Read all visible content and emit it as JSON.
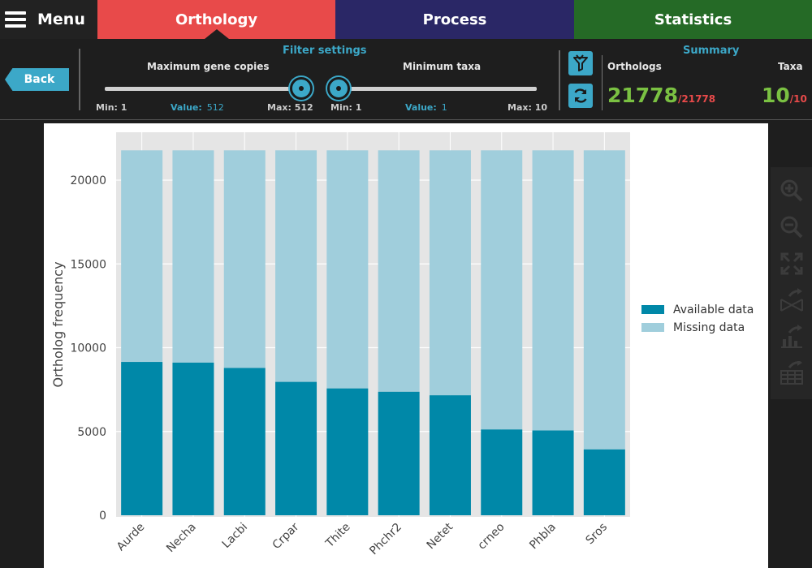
{
  "topbar": {
    "menu_label": "Menu",
    "tabs": [
      {
        "label": "Orthology",
        "color": "#e84a4a",
        "active": true
      },
      {
        "label": "Process",
        "color": "#2a2766"
      },
      {
        "label": "Statistics",
        "color": "#256a26"
      }
    ]
  },
  "filters": {
    "back_label": "Back",
    "title": "Filter settings",
    "max_gene_copies": {
      "label": "Maximum gene copies",
      "min_label": "Min: 1",
      "value_label": "Value:",
      "value": "512",
      "max_label": "Max: 512",
      "fraction": 1.0
    },
    "min_taxa": {
      "label": "Minimum taxa",
      "min_label": "Min: 1",
      "value_label": "Value:",
      "value": "1",
      "max_label": "Max: 10",
      "fraction": 0.0
    }
  },
  "summary": {
    "title": "Summary",
    "orthologs_label": "Orthologs",
    "orthologs_value": "21778",
    "orthologs_total": "/21778",
    "taxa_label": "Taxa",
    "taxa_value": "10",
    "taxa_total": "/10"
  },
  "colors": {
    "available": "#0088a8",
    "missing": "#a0cedc",
    "accent": "#3ca8c8",
    "green": "#7ac142",
    "red": "#e84a4a"
  },
  "chart_data": {
    "type": "bar",
    "stacked": true,
    "title": "",
    "xlabel": "",
    "ylabel": "Ortholog frequency",
    "ylim": [
      0,
      22000
    ],
    "yticks": [
      0,
      5000,
      10000,
      15000,
      20000
    ],
    "categories": [
      "Aurde",
      "Necha",
      "Lacbi",
      "Crpar",
      "Thite",
      "Phchr2",
      "Netet",
      "crneo",
      "Phbla",
      "Sros"
    ],
    "series": [
      {
        "name": "Available data",
        "values": [
          9150,
          9110,
          8790,
          7960,
          7570,
          7370,
          7160,
          5120,
          5060,
          3930
        ]
      },
      {
        "name": "Missing data",
        "values": [
          12628,
          12668,
          12988,
          13818,
          14208,
          14408,
          14618,
          16658,
          16718,
          17848
        ]
      }
    ],
    "legend": "right"
  },
  "toolbar_icons": [
    "zoom-in-icon",
    "zoom-out-icon",
    "fullscreen-icon",
    "export-figure-icon",
    "export-graph-icon",
    "export-table-icon"
  ]
}
